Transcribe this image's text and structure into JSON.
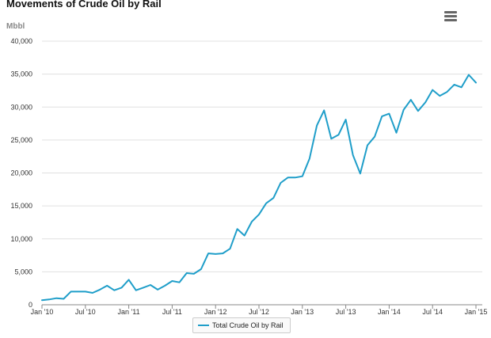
{
  "header": {
    "title": "Movements of Crude Oil by Rail",
    "y_unit": "Mbbl",
    "menu_icon": "hamburger-menu-icon"
  },
  "colors": {
    "series": "#1f9ec9",
    "grid": "#e0e0e0",
    "axis": "#888888"
  },
  "chart_data": {
    "type": "line",
    "title": "Movements of Crude Oil by Rail",
    "xlabel": "",
    "ylabel": "Mbbl",
    "ylim": [
      0,
      40000
    ],
    "y_ticks": [
      0,
      5000,
      10000,
      15000,
      20000,
      25000,
      30000,
      35000,
      40000
    ],
    "y_tick_labels": [
      "0",
      "5,000",
      "10,000",
      "15,000",
      "20,000",
      "25,000",
      "30,000",
      "35,000",
      "40,000"
    ],
    "x_tick_labels": [
      "Jan '10",
      "Jul '10",
      "Jan '11",
      "Jul '11",
      "Jan '12",
      "Jul '12",
      "Jan '13",
      "Jul '13",
      "Jan '14",
      "Jul '14",
      "Jan '15"
    ],
    "x_start": "Jan '10",
    "x_end": "Jan '15",
    "grid": true,
    "legend_position": "bottom-center",
    "series": [
      {
        "name": "Total Crude Oil by Rail",
        "values": [
          700,
          800,
          1000,
          900,
          2000,
          2000,
          2000,
          1800,
          2300,
          2900,
          2200,
          2600,
          3800,
          2200,
          2600,
          3000,
          2300,
          2900,
          3600,
          3400,
          4800,
          4700,
          5400,
          7800,
          7700,
          7800,
          8500,
          11500,
          10500,
          12600,
          13700,
          15400,
          16200,
          18500,
          19300,
          19300,
          19500,
          22200,
          27200,
          29500,
          25200,
          25800,
          28100,
          22700,
          19900,
          24200,
          25500,
          28600,
          29000,
          26100,
          29600,
          31100,
          29400,
          30700,
          32600,
          31700,
          32300,
          33400,
          33000,
          34900,
          33700
        ]
      }
    ]
  },
  "legend": {
    "items": [
      {
        "label": "Total Crude Oil by Rail"
      }
    ]
  }
}
